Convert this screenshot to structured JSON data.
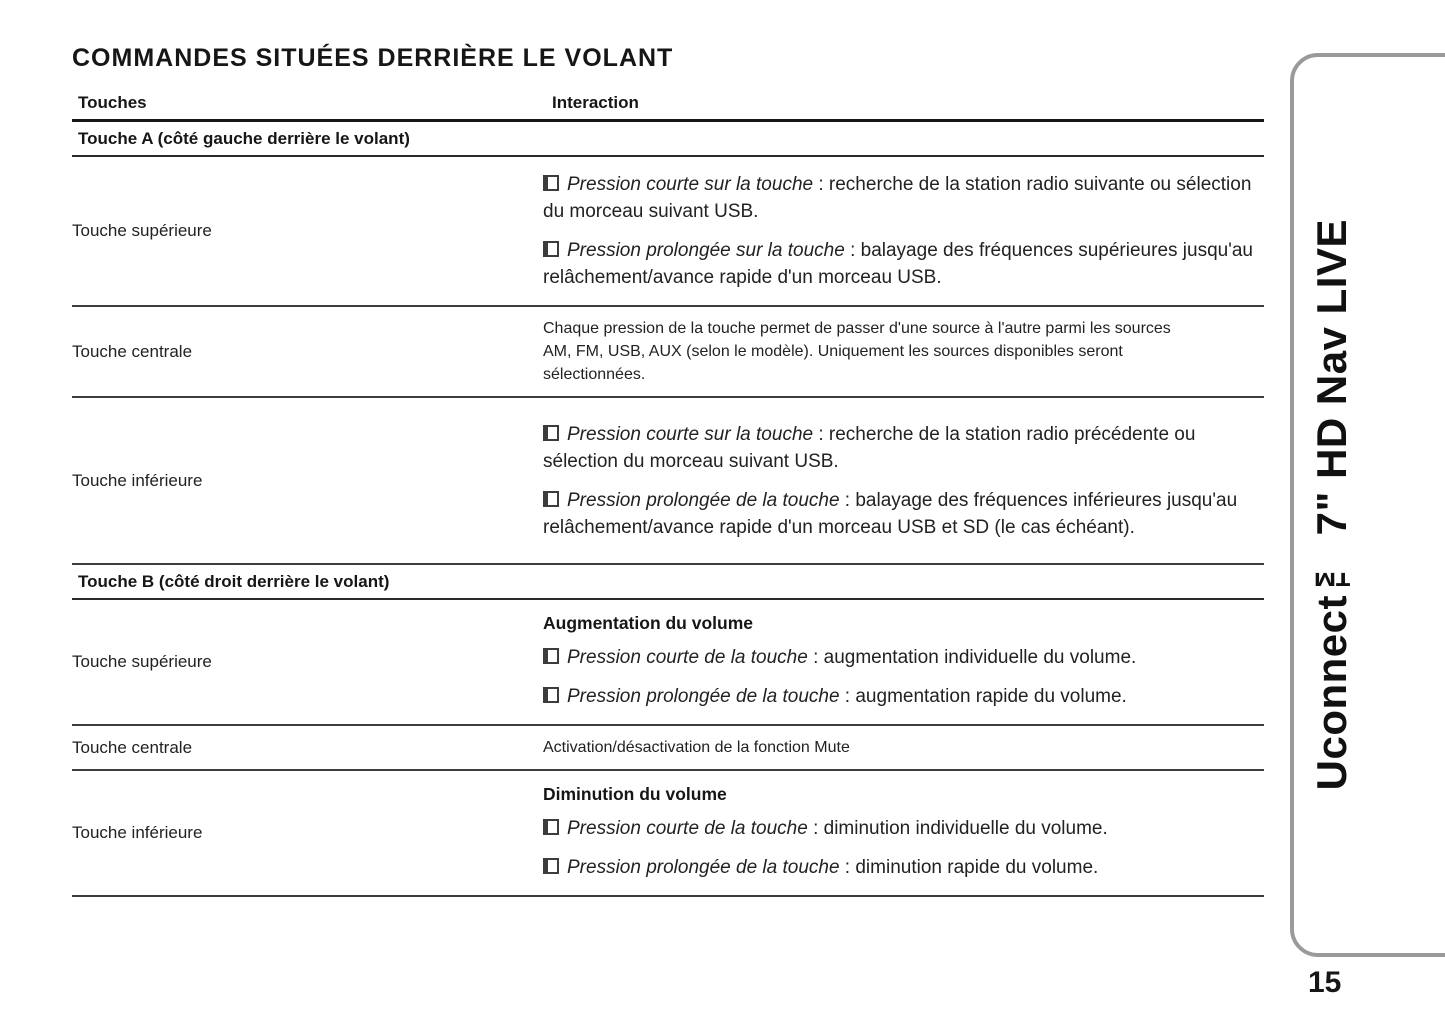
{
  "page": {
    "title": "COMMANDES SITUÉES DERRIÈRE LE VOLANT",
    "page_number": "15",
    "sidebar_label": "Uconnect™ 7\" HD Nav LIVE"
  },
  "table": {
    "headers": [
      "Touches",
      "Interaction"
    ],
    "sections": [
      {
        "section_title": "Touche A (côté gauche derrière le volant)",
        "rows": [
          {
            "touche": "Touche supérieure",
            "items": [
              {
                "type": "bullet",
                "lead": "Pression courte sur la touche",
                "text": " : recherche de la station radio suivante ou sélection du morceau suivant USB."
              },
              {
                "type": "bullet",
                "lead": "Pression prolongée sur la touche",
                "text": " : balayage des fréquences supérieures jusqu'au relâchement/avance rapide d'un morceau USB."
              }
            ]
          },
          {
            "touche": "Touche centrale",
            "items": [
              {
                "type": "plain-small",
                "text": "Chaque pression de la touche permet de passer d'une source à l'autre parmi les sources AM, FM, USB, AUX (selon le modèle). Uniquement les sources disponibles seront sélectionnées."
              }
            ]
          },
          {
            "touche": "Touche inférieure",
            "items": [
              {
                "type": "bullet",
                "lead": "Pression courte sur la touche",
                "text": " : recherche de la station radio précédente ou sélection du morceau suivant USB."
              },
              {
                "type": "bullet",
                "lead": "Pression prolongée de la touche",
                "text": " : balayage des fréquences inférieures jusqu'au relâchement/avance rapide d'un morceau USB et SD (le cas échéant)."
              }
            ]
          }
        ]
      },
      {
        "section_title": "Touche B (côté droit derrière le volant)",
        "rows": [
          {
            "touche": "Touche supérieure",
            "items": [
              {
                "type": "bold",
                "text": "Augmentation du volume"
              },
              {
                "type": "bullet",
                "lead": "Pression courte de la touche",
                "text": " : augmentation individuelle du volume."
              },
              {
                "type": "bullet",
                "lead": "Pression prolongée de la touche",
                "text": " : augmentation rapide du volume."
              }
            ]
          },
          {
            "touche": "Touche centrale",
            "items": [
              {
                "type": "plain",
                "text": "Activation/désactivation de la fonction Mute"
              }
            ]
          },
          {
            "touche": "Touche inférieure",
            "items": [
              {
                "type": "bold",
                "text": "Diminution du volume"
              },
              {
                "type": "bullet",
                "lead": "Pression courte de la touche",
                "text": " : diminution individuelle du volume."
              },
              {
                "type": "bullet",
                "lead": "Pression prolongée de la touche",
                "text": " : diminution rapide du volume."
              }
            ]
          }
        ]
      }
    ]
  },
  "colors": {
    "text": "#1c1c1c",
    "heavy_line": "#161616",
    "row_line": "#3d3d3d",
    "sidebar_border": "#9a9a9a"
  }
}
